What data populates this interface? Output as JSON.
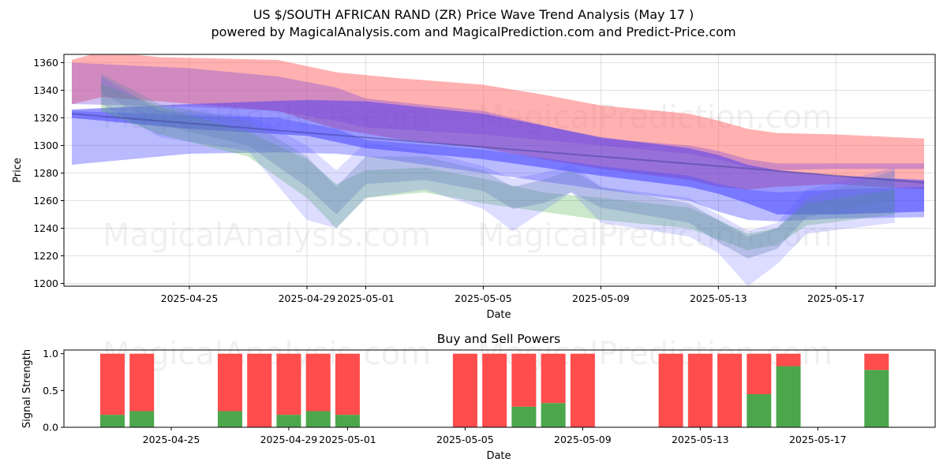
{
  "chart_data": [
    {
      "type": "area",
      "title": "US $/SOUTH AFRICAN RAND (ZR) Price Wave Trend Analysis (May 17 )",
      "subtitle": "powered by MagicalAnalysis.com and MagicalPrediction.com and Predict-Price.com",
      "xlabel": "Date",
      "ylabel": "Price",
      "x_ticks": [
        "2025-04-25",
        "2025-04-29",
        "2025-05-01",
        "2025-05-05",
        "2025-05-09",
        "2025-05-13",
        "2025-05-17"
      ],
      "y_ticks": [
        1200,
        1220,
        1240,
        1260,
        1280,
        1300,
        1320,
        1340,
        1360
      ],
      "ylim": [
        1198,
        1366
      ],
      "x_range": [
        "2025-04-21",
        "2025-05-20"
      ],
      "watermarks": [
        "MagicalAnalysis.com",
        "MagicalPrediction.com"
      ],
      "bands": [
        {
          "name": "upper forecast band",
          "color": "#ff7070",
          "opacity": 0.55,
          "x": [
            "2025-04-21",
            "2025-04-22",
            "2025-04-24",
            "2025-04-28",
            "2025-04-30",
            "2025-05-02",
            "2025-05-05",
            "2025-05-07",
            "2025-05-09",
            "2025-05-12",
            "2025-05-13",
            "2025-05-14",
            "2025-05-15",
            "2025-05-17",
            "2025-05-20"
          ],
          "lower": [
            1330,
            1335,
            1332,
            1325,
            1312,
            1305,
            1298,
            1290,
            1283,
            1275,
            1270,
            1268,
            1270,
            1272,
            1268
          ],
          "upper": [
            1362,
            1368,
            1364,
            1362,
            1353,
            1349,
            1344,
            1337,
            1329,
            1323,
            1318,
            1312,
            1309,
            1308,
            1305
          ]
        },
        {
          "name": "main trend band",
          "color": "#3030ff",
          "opacity": 0.5,
          "x": [
            "2025-04-21",
            "2025-04-25",
            "2025-04-29",
            "2025-05-01",
            "2025-05-05",
            "2025-05-09",
            "2025-05-12",
            "2025-05-13",
            "2025-05-14",
            "2025-05-15",
            "2025-05-17",
            "2025-05-20"
          ],
          "lower": [
            1320,
            1312,
            1307,
            1298,
            1290,
            1278,
            1270,
            1265,
            1258,
            1250,
            1250,
            1252
          ],
          "upper": [
            1326,
            1330,
            1333,
            1332,
            1323,
            1306,
            1298,
            1293,
            1286,
            1282,
            1278,
            1275
          ]
        },
        {
          "name": "wide lower band",
          "color": "#4a4aff",
          "opacity": 0.38,
          "x": [
            "2025-04-21",
            "2025-04-25",
            "2025-04-28",
            "2025-04-30",
            "2025-05-01",
            "2025-05-05",
            "2025-05-09",
            "2025-05-12",
            "2025-05-13",
            "2025-05-14",
            "2025-05-15",
            "2025-05-17",
            "2025-05-20"
          ],
          "lower": [
            1286,
            1294,
            1295,
            1294,
            1292,
            1280,
            1268,
            1260,
            1252,
            1246,
            1245,
            1247,
            1248
          ],
          "upper": [
            1325,
            1322,
            1320,
            1312,
            1304,
            1297,
            1285,
            1278,
            1272,
            1268,
            1266,
            1268,
            1270
          ]
        },
        {
          "name": "purple upper band",
          "color": "#7744dd",
          "opacity": 0.35,
          "x": [
            "2025-04-21",
            "2025-04-25",
            "2025-04-28",
            "2025-04-30",
            "2025-05-01",
            "2025-05-05",
            "2025-05-09",
            "2025-05-12",
            "2025-05-13",
            "2025-05-14",
            "2025-05-15",
            "2025-05-17",
            "2025-05-20"
          ],
          "lower": [
            1330,
            1328,
            1325,
            1318,
            1313,
            1308,
            1300,
            1294,
            1290,
            1284,
            1282,
            1283,
            1283
          ],
          "upper": [
            1360,
            1356,
            1350,
            1342,
            1334,
            1325,
            1305,
            1300,
            1296,
            1290,
            1287,
            1287,
            1287
          ]
        },
        {
          "name": "green wave band",
          "color": "#40b040",
          "opacity": 0.28,
          "x": [
            "2025-04-22",
            "2025-04-24",
            "2025-04-27",
            "2025-04-29",
            "2025-04-30",
            "2025-05-01",
            "2025-05-03",
            "2025-05-05",
            "2025-05-07",
            "2025-05-09",
            "2025-05-12",
            "2025-05-13",
            "2025-05-14",
            "2025-05-15",
            "2025-05-16",
            "2025-05-19"
          ],
          "lower": [
            1325,
            1308,
            1292,
            1262,
            1240,
            1262,
            1266,
            1258,
            1252,
            1246,
            1240,
            1232,
            1224,
            1228,
            1242,
            1250
          ],
          "upper": [
            1345,
            1328,
            1310,
            1290,
            1272,
            1282,
            1284,
            1276,
            1266,
            1262,
            1255,
            1246,
            1236,
            1240,
            1258,
            1268
          ]
        },
        {
          "name": "slate wave band",
          "color": "#6688aa",
          "opacity": 0.32,
          "x": [
            "2025-04-22",
            "2025-04-24",
            "2025-04-27",
            "2025-04-29",
            "2025-04-30",
            "2025-05-01",
            "2025-05-03",
            "2025-05-05",
            "2025-05-06",
            "2025-05-07",
            "2025-05-08",
            "2025-05-09",
            "2025-05-12",
            "2025-05-13",
            "2025-05-14",
            "2025-05-15",
            "2025-05-16",
            "2025-05-19"
          ],
          "lower": [
            1338,
            1315,
            1300,
            1270,
            1250,
            1272,
            1275,
            1267,
            1254,
            1258,
            1266,
            1255,
            1244,
            1230,
            1218,
            1225,
            1248,
            1262
          ],
          "upper": [
            1352,
            1330,
            1318,
            1292,
            1270,
            1292,
            1292,
            1282,
            1270,
            1275,
            1282,
            1270,
            1258,
            1246,
            1234,
            1240,
            1262,
            1282
          ]
        },
        {
          "name": "light blue wave band",
          "color": "#5555ff",
          "opacity": 0.2,
          "x": [
            "2025-04-22",
            "2025-04-24",
            "2025-04-27",
            "2025-04-29",
            "2025-04-30",
            "2025-05-01",
            "2025-05-03",
            "2025-05-05",
            "2025-05-06",
            "2025-05-07",
            "2025-05-08",
            "2025-05-09",
            "2025-05-12",
            "2025-05-13",
            "2025-05-14",
            "2025-05-15",
            "2025-05-16",
            "2025-05-19"
          ],
          "lower": [
            1330,
            1306,
            1296,
            1246,
            1240,
            1262,
            1268,
            1254,
            1238,
            1252,
            1266,
            1244,
            1234,
            1222,
            1198,
            1214,
            1236,
            1244
          ],
          "upper": [
            1350,
            1325,
            1322,
            1300,
            1282,
            1302,
            1296,
            1285,
            1276,
            1280,
            1286,
            1270,
            1262,
            1250,
            1238,
            1244,
            1268,
            1284
          ]
        }
      ],
      "series": [
        {
          "name": "range line",
          "color": "#3a3a90",
          "opacity": 0.45,
          "x": [
            "2025-04-21",
            "2025-05-20"
          ],
          "values": [
            1323,
            1273
          ]
        }
      ]
    },
    {
      "type": "bar",
      "stacked": true,
      "title": "Buy and Sell Powers",
      "xlabel": "Date",
      "ylabel": "Signal Strength",
      "y_ticks": [
        "0.0",
        "0.5",
        "1.0"
      ],
      "ylim": [
        0,
        1.05
      ],
      "x_ticks": [
        "2025-04-25",
        "2025-04-29",
        "2025-05-01",
        "2025-05-05",
        "2025-05-09",
        "2025-05-13",
        "2025-05-17"
      ],
      "x_range": [
        "2025-04-21",
        "2025-05-20"
      ],
      "colors": {
        "buy": "#4ca64c",
        "sell": "#ff4c4c"
      },
      "dates": [
        "2025-04-23",
        "2025-04-24",
        "2025-04-27",
        "2025-04-28",
        "2025-04-29",
        "2025-04-30",
        "2025-05-01",
        "2025-05-05",
        "2025-05-06",
        "2025-05-07",
        "2025-05-08",
        "2025-05-09",
        "2025-05-12",
        "2025-05-13",
        "2025-05-14",
        "2025-05-15",
        "2025-05-16",
        "2025-05-19"
      ],
      "buy": [
        0.17,
        0.22,
        0.22,
        0.0,
        0.17,
        0.22,
        0.17,
        0.0,
        0.0,
        0.28,
        0.33,
        0.0,
        0.0,
        0.0,
        0.0,
        0.45,
        0.83,
        0.78
      ],
      "sell": [
        0.83,
        0.78,
        0.78,
        1.0,
        0.83,
        0.78,
        0.83,
        1.0,
        1.0,
        0.72,
        0.67,
        1.0,
        1.0,
        1.0,
        1.0,
        0.55,
        0.17,
        0.22
      ]
    }
  ]
}
